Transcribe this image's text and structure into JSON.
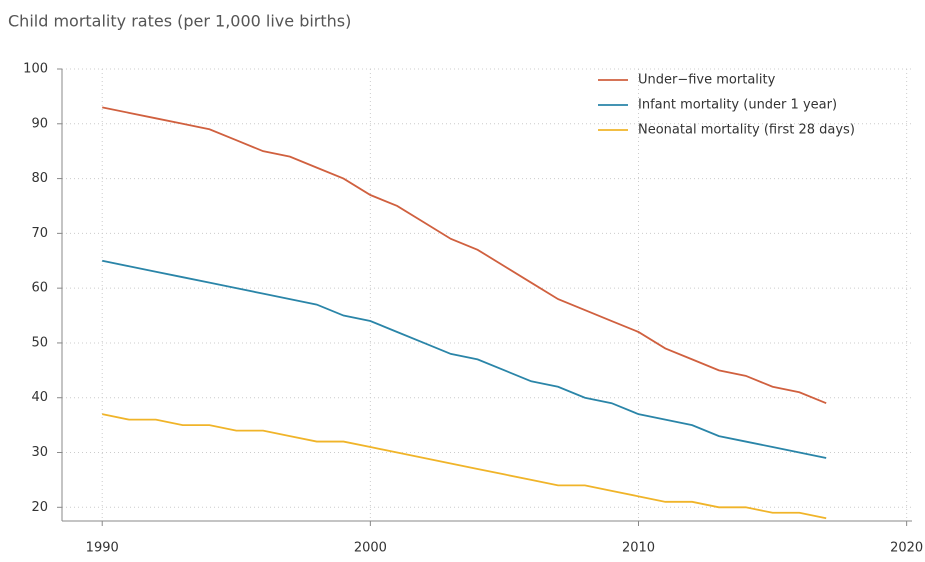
{
  "chart_data": {
    "type": "line",
    "title": "Child mortality rates (per 1,000 live births)",
    "x": [
      1990,
      1991,
      1992,
      1993,
      1994,
      1995,
      1996,
      1997,
      1998,
      1999,
      2000,
      2001,
      2002,
      2003,
      2004,
      2005,
      2006,
      2007,
      2008,
      2009,
      2010,
      2011,
      2012,
      2013,
      2014,
      2015,
      2016,
      2017
    ],
    "series": [
      {
        "name": "Under−five mortality",
        "color": "#d0603f",
        "values": [
          93,
          92,
          91,
          90,
          89,
          87,
          85,
          84,
          82,
          80,
          77,
          75,
          72,
          69,
          67,
          64,
          61,
          58,
          56,
          54,
          52,
          49,
          47,
          45,
          44,
          42,
          41,
          39
        ]
      },
      {
        "name": "Infant mortality (under 1 year)",
        "color": "#2a85a8",
        "values": [
          65,
          64,
          63,
          62,
          61,
          60,
          59,
          58,
          57,
          55,
          54,
          52,
          50,
          48,
          47,
          45,
          43,
          42,
          40,
          39,
          37,
          36,
          35,
          33,
          32,
          31,
          30,
          29
        ]
      },
      {
        "name": "Neonatal mortality (first 28 days)",
        "color": "#f0b429",
        "values": [
          37,
          36,
          36,
          35,
          35,
          34,
          34,
          33,
          32,
          32,
          31,
          30,
          29,
          28,
          27,
          26,
          25,
          24,
          24,
          23,
          22,
          21,
          21,
          20,
          20,
          19,
          19,
          18
        ]
      }
    ],
    "xlim": [
      1988.5,
      2020.2
    ],
    "xticks": [
      1990,
      2000,
      2010,
      2020
    ],
    "ylim": [
      17.5,
      100
    ],
    "yticks": [
      20,
      30,
      40,
      50,
      60,
      70,
      80,
      90,
      100
    ],
    "grid": true,
    "legend": "top-right"
  }
}
